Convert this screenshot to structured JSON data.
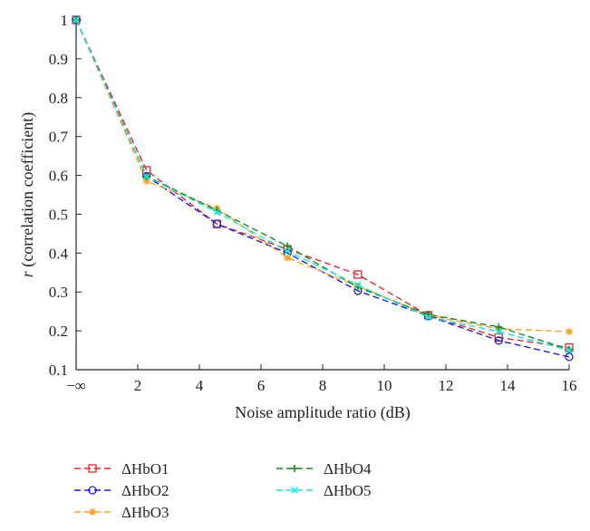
{
  "chart_data": {
    "type": "line",
    "xlabel": "Noise amplitude ratio (dB)",
    "ylabel_italic": "r",
    "ylabel_rest": " (correlation coefficient)",
    "x_ticks": [
      "−∞",
      "2",
      "4",
      "6",
      "8",
      "10",
      "12",
      "14",
      "16"
    ],
    "y_ticks": [
      "0.1",
      "0.2",
      "0.3",
      "0.4",
      "0.5",
      "0.6",
      "0.7",
      "0.8",
      "0.9",
      "1"
    ],
    "xlim": [
      0,
      16
    ],
    "ylim": [
      0.1,
      1.0
    ],
    "x": [
      0,
      2.286,
      4.571,
      6.857,
      9.143,
      11.429,
      13.714,
      16
    ],
    "grid": false,
    "legend_position": "bottom",
    "series": [
      {
        "name": "ΔHbO1",
        "color": "#e8262a",
        "marker": "square",
        "values": [
          1.0,
          0.613,
          0.475,
          0.41,
          0.345,
          0.24,
          0.183,
          0.157
        ]
      },
      {
        "name": "ΔHbO2",
        "color": "#1f1fd6",
        "marker": "circle",
        "values": [
          1.0,
          0.598,
          0.475,
          0.4,
          0.303,
          0.238,
          0.175,
          0.133
        ]
      },
      {
        "name": "ΔHbO3",
        "color": "#f5a31a",
        "marker": "asterisk",
        "values": [
          1.0,
          0.585,
          0.515,
          0.388,
          0.315,
          0.24,
          0.205,
          0.198
        ]
      },
      {
        "name": "ΔHbO4",
        "color": "#168a20",
        "marker": "plus",
        "values": [
          1.0,
          0.598,
          0.51,
          0.418,
          0.312,
          0.242,
          0.21,
          0.152
        ]
      },
      {
        "name": "ΔHbO5",
        "color": "#12e6e6",
        "marker": "x",
        "values": [
          1.0,
          0.597,
          0.505,
          0.405,
          0.318,
          0.235,
          0.198,
          0.15
        ]
      }
    ]
  }
}
